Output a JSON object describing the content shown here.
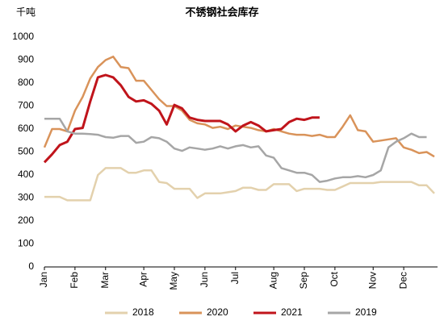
{
  "chart_data": {
    "type": "line",
    "title": "不锈钢社会库存",
    "y_label": "千吨",
    "categories": [
      "Jan",
      null,
      null,
      null,
      "Feb",
      null,
      null,
      null,
      "Mar",
      null,
      null,
      null,
      null,
      "Apr",
      null,
      null,
      null,
      "May",
      null,
      null,
      null,
      "Jun",
      null,
      null,
      null,
      "Jul",
      null,
      null,
      null,
      null,
      "Aug",
      null,
      null,
      null,
      "Sep",
      null,
      null,
      null,
      "Oct",
      null,
      null,
      null,
      null,
      "Nov",
      null,
      null,
      null,
      "Dec",
      null,
      null,
      null,
      null
    ],
    "series": [
      {
        "name": "2018",
        "color": "#e3d1ad",
        "values": [
          305,
          305,
          305,
          290,
          290,
          290,
          290,
          400,
          430,
          430,
          430,
          410,
          410,
          420,
          420,
          370,
          365,
          340,
          340,
          340,
          300,
          320,
          320,
          320,
          325,
          330,
          345,
          345,
          335,
          335,
          360,
          360,
          360,
          330,
          340,
          340,
          340,
          335,
          335,
          350,
          365,
          365,
          365,
          365,
          370,
          370,
          370,
          370,
          370,
          355,
          355,
          320
        ]
      },
      {
        "name": "2020",
        "color": "#d9935a",
        "values": [
          520,
          600,
          600,
          590,
          680,
          740,
          820,
          870,
          900,
          915,
          870,
          865,
          810,
          810,
          770,
          730,
          700,
          700,
          680,
          640,
          625,
          620,
          605,
          610,
          600,
          615,
          610,
          605,
          595,
          590,
          600,
          590,
          580,
          575,
          575,
          570,
          575,
          565,
          565,
          610,
          660,
          595,
          590,
          545,
          550,
          555,
          560,
          520,
          510,
          495,
          500,
          480
        ]
      },
      {
        "name": "2021",
        "color": "#c0141b",
        "values": [
          455,
          490,
          530,
          545,
          600,
          605,
          720,
          825,
          835,
          825,
          790,
          740,
          720,
          725,
          710,
          680,
          620,
          705,
          690,
          650,
          640,
          635,
          635,
          635,
          620,
          590,
          615,
          630,
          615,
          590,
          595,
          600,
          630,
          645,
          640,
          650,
          650,
          null,
          null,
          null,
          null,
          null,
          null,
          null,
          null,
          null,
          null,
          null,
          null,
          null,
          null,
          null
        ]
      },
      {
        "name": "2019",
        "color": "#a6a6a6",
        "values": [
          645,
          645,
          645,
          590,
          580,
          580,
          578,
          575,
          565,
          562,
          570,
          570,
          540,
          545,
          565,
          560,
          545,
          515,
          505,
          520,
          515,
          510,
          515,
          525,
          515,
          525,
          530,
          520,
          525,
          485,
          475,
          430,
          420,
          410,
          410,
          400,
          370,
          375,
          385,
          390,
          390,
          395,
          390,
          400,
          420,
          520,
          545,
          560,
          580,
          565,
          565,
          null
        ]
      }
    ],
    "ylim": [
      0,
      1000
    ],
    "yticks": [
      0,
      100,
      200,
      300,
      400,
      500,
      600,
      700,
      800,
      900,
      1000
    ]
  }
}
